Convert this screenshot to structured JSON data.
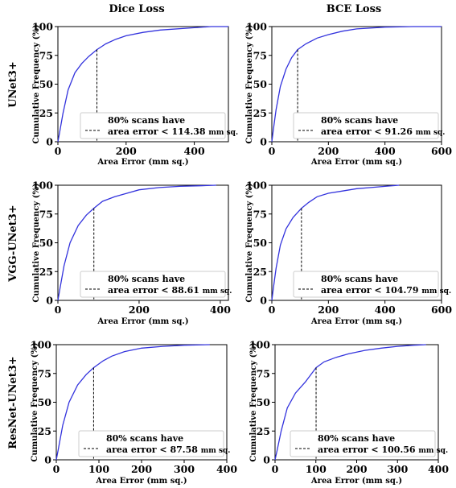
{
  "figure": {
    "column_titles": [
      "Dice Loss",
      "BCE Loss"
    ],
    "row_titles": [
      "UNet3+",
      "VGG-UNet3+",
      "ResNet-UNet3+"
    ]
  },
  "colors": {
    "curve": "#3333dd",
    "axes": "#000000",
    "marker": "#000000"
  },
  "chart_data": [
    {
      "type": "line",
      "model": "UNet3+",
      "loss": "Dice Loss",
      "xlabel": "Area Error (mm sq.)",
      "ylabel": "Cumulative Frequency (%)",
      "xlim": [
        0,
        500
      ],
      "ylim": [
        0,
        100
      ],
      "xticks": [
        0,
        200,
        400
      ],
      "yticks": [
        0,
        25,
        50,
        75,
        100
      ],
      "x": [
        0,
        5,
        15,
        30,
        50,
        70,
        90,
        114.38,
        140,
        170,
        200,
        250,
        300,
        400,
        450,
        500
      ],
      "y": [
        0,
        8,
        25,
        45,
        60,
        68,
        74,
        80,
        85,
        89,
        92,
        95,
        97,
        99,
        100,
        100
      ],
      "marker": {
        "x": 114.38,
        "y": 80
      },
      "legend": {
        "line1": "80% scans have",
        "line2": "area error < 114.38",
        "unit": "mm sq."
      },
      "grid": false
    },
    {
      "type": "line",
      "model": "UNet3+",
      "loss": "BCE Loss",
      "xlabel": "Area Error (mm sq.)",
      "ylabel": "Cumulative Frequency (%)",
      "xlim": [
        0,
        600
      ],
      "ylim": [
        0,
        100
      ],
      "xticks": [
        0,
        200,
        400,
        600
      ],
      "yticks": [
        0,
        25,
        50,
        75,
        100
      ],
      "x": [
        0,
        5,
        15,
        30,
        50,
        70,
        91.26,
        120,
        160,
        200,
        250,
        300,
        400,
        500,
        600
      ],
      "y": [
        0,
        10,
        28,
        48,
        63,
        73,
        80,
        85,
        90,
        93,
        96,
        98,
        99.5,
        100,
        100
      ],
      "marker": {
        "x": 91.26,
        "y": 80
      },
      "legend": {
        "line1": "80% scans have",
        "line2": "area error < 91.26",
        "unit": "mm sq."
      },
      "grid": false
    },
    {
      "type": "line",
      "model": "VGG-UNet3+",
      "loss": "Dice Loss",
      "xlabel": "Area Error (mm sq.)",
      "ylabel": "Cumulative Frequency (%)",
      "xlim": [
        0,
        420
      ],
      "ylim": [
        0,
        100
      ],
      "xticks": [
        0,
        200,
        400
      ],
      "yticks": [
        0,
        25,
        50,
        75,
        100
      ],
      "x": [
        0,
        5,
        15,
        30,
        50,
        70,
        88.61,
        110,
        140,
        170,
        200,
        250,
        300,
        350,
        390
      ],
      "y": [
        0,
        10,
        30,
        50,
        65,
        74,
        80,
        86,
        90,
        93,
        96,
        98,
        99,
        99.5,
        100
      ],
      "marker": {
        "x": 88.61,
        "y": 80
      },
      "legend": {
        "line1": "80% scans have",
        "line2": "area error < 88.61",
        "unit": "mm sq."
      },
      "grid": false
    },
    {
      "type": "line",
      "model": "VGG-UNet3+",
      "loss": "BCE Loss",
      "xlabel": "Area Error (mm sq.)",
      "ylabel": "Cumulative Frequency (%)",
      "xlim": [
        0,
        600
      ],
      "ylim": [
        0,
        100
      ],
      "xticks": [
        0,
        200,
        400,
        600
      ],
      "yticks": [
        0,
        25,
        50,
        75,
        100
      ],
      "x": [
        0,
        5,
        15,
        30,
        50,
        75,
        104.79,
        130,
        160,
        200,
        250,
        300,
        350,
        400,
        450
      ],
      "y": [
        0,
        10,
        28,
        48,
        62,
        72,
        80,
        85,
        90,
        93,
        95,
        97,
        98,
        99,
        100
      ],
      "marker": {
        "x": 104.79,
        "y": 80
      },
      "legend": {
        "line1": "80% scans have",
        "line2": "area error < 104.79",
        "unit": "mm sq."
      },
      "grid": false
    },
    {
      "type": "line",
      "model": "ResNet-UNet3+",
      "loss": "Dice Loss",
      "xlabel": "Area Error (mm sq.)",
      "ylabel": "Cumulative Frequency (%)",
      "xlim": [
        0,
        400
      ],
      "ylim": [
        0,
        100
      ],
      "xticks": [
        0,
        100,
        200,
        300,
        400
      ],
      "yticks": [
        0,
        25,
        50,
        75,
        100
      ],
      "x": [
        0,
        5,
        15,
        30,
        50,
        70,
        87.58,
        110,
        130,
        160,
        200,
        250,
        300,
        360
      ],
      "y": [
        0,
        10,
        30,
        50,
        65,
        74,
        80,
        86,
        90,
        94,
        97,
        98.5,
        99.5,
        100
      ],
      "marker": {
        "x": 87.58,
        "y": 80
      },
      "legend": {
        "line1": "80% scans have",
        "line2": "area error < 87.58",
        "unit": "mm sq."
      },
      "grid": false
    },
    {
      "type": "line",
      "model": "ResNet-UNet3+",
      "loss": "BCE Loss",
      "xlabel": "Area Error (mm sq.)",
      "ylabel": "Cumulative Frequency (%)",
      "xlim": [
        0,
        400
      ],
      "ylim": [
        0,
        100
      ],
      "xticks": [
        0,
        100,
        200,
        300,
        400
      ],
      "yticks": [
        0,
        25,
        50,
        75,
        100
      ],
      "x": [
        0,
        5,
        15,
        30,
        50,
        75,
        100.56,
        120,
        150,
        180,
        220,
        260,
        300,
        340,
        370
      ],
      "y": [
        0,
        8,
        25,
        45,
        58,
        68,
        80,
        85,
        89,
        92,
        95,
        97,
        98.5,
        99.5,
        100
      ],
      "marker": {
        "x": 100.56,
        "y": 80
      },
      "legend": {
        "line1": "80% scans have",
        "line2": "area error < 100.56",
        "unit": "mm sq."
      },
      "grid": false
    }
  ]
}
